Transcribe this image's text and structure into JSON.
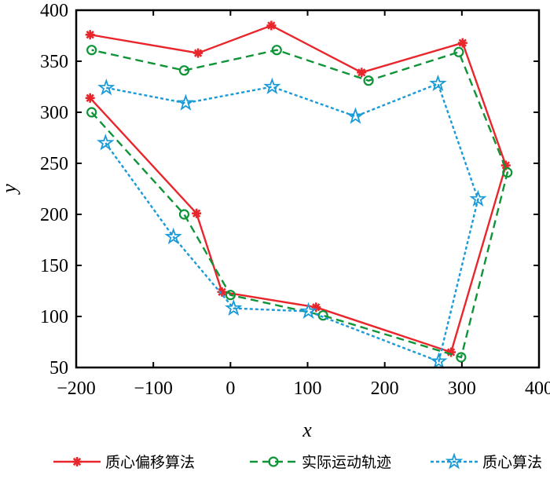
{
  "chart_data": {
    "type": "line",
    "title": "",
    "xlabel": "x",
    "ylabel": "y",
    "xlim": [
      -200,
      400
    ],
    "ylim": [
      50,
      400
    ],
    "xticks": [
      -200,
      -100,
      0,
      100,
      200,
      300,
      400
    ],
    "xtick_labels": [
      "−200",
      "−100",
      "0",
      "100",
      "200",
      "300",
      "400"
    ],
    "yticks": [
      50,
      100,
      150,
      200,
      250,
      300,
      350,
      400
    ],
    "ytick_labels": [
      "50",
      "100",
      "150",
      "200",
      "250",
      "300",
      "350",
      "400"
    ],
    "grid": false,
    "legend_position": "bottom",
    "series": [
      {
        "name": "质心偏移算法",
        "color": "#e8262b",
        "style": "solid",
        "marker": "asterisk",
        "x": [
          -182,
          -44,
          -11,
          111,
          286,
          357,
          301,
          170,
          53,
          -42,
          -182
        ],
        "y": [
          314,
          201,
          124,
          109,
          65,
          248,
          368,
          339,
          385,
          358,
          376
        ]
      },
      {
        "name": "实际运动轨迹",
        "color": "#0f9438",
        "style": "dashed",
        "marker": "circle",
        "x": [
          -180,
          -60,
          0,
          120,
          299,
          359,
          296,
          179,
          60,
          -60,
          -180
        ],
        "y": [
          300,
          200,
          121,
          101,
          60,
          241,
          359,
          331,
          361,
          341,
          361
        ]
      },
      {
        "name": "质心算法",
        "color": "#1a9bd7",
        "style": "dotted",
        "marker": "star",
        "x": [
          -162,
          -74,
          4,
          101,
          270,
          321,
          269,
          162,
          54,
          -58,
          -161
        ],
        "y": [
          270,
          178,
          108,
          105,
          56,
          215,
          328,
          296,
          325,
          309,
          324
        ]
      }
    ]
  }
}
